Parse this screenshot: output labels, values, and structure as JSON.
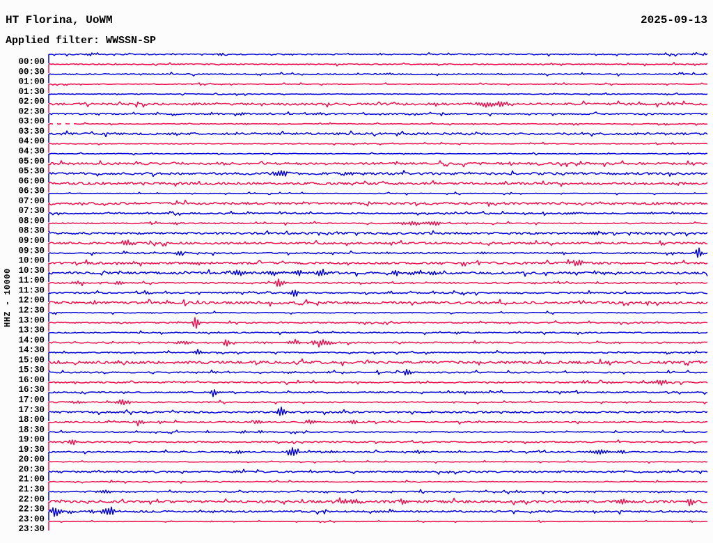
{
  "header": {
    "station_title": "HT Florina, UoWM",
    "date": "2025-09-13",
    "filter_label": "Applied filter: WWSSN-SP"
  },
  "axis": {
    "y_label": "HHZ - 10000",
    "minutes_per_line": 30,
    "first_line": "00:00",
    "last_line": "23:30"
  },
  "colors": {
    "trace_blue": "#0000d8",
    "trace_red": "#ee0f4d",
    "text": "#000000",
    "background": "#fcfcfd"
  },
  "chart_data": {
    "type": "helicorder",
    "title": "HT Florina, UoWM",
    "date": "2025-09-13",
    "filter": "WWSSN-SP",
    "channel_scale": "HHZ - 10000",
    "lines": 48,
    "minutes_per_line": 30,
    "legend_position": "none",
    "grid": false,
    "rows": [
      {
        "t": "00:00",
        "noise": 0.8,
        "events": [
          {
            "m": 1.9,
            "w": 6,
            "a": 2
          },
          {
            "m": 7.9,
            "w": 5,
            "a": 1.5
          },
          {
            "m": 29.9,
            "w": 4,
            "a": 2
          }
        ]
      },
      {
        "t": "00:30",
        "noise": 0.7,
        "events": [
          {
            "m": 30.0,
            "w": 3,
            "a": 2
          }
        ]
      },
      {
        "t": "01:00",
        "noise": 0.8,
        "events": [
          {
            "m": 15.5,
            "w": 4,
            "a": 1.5
          },
          {
            "m": 29.8,
            "w": 3,
            "a": 2
          }
        ]
      },
      {
        "t": "01:30",
        "noise": 0.5,
        "events": []
      },
      {
        "t": "02:00",
        "noise": 0.5,
        "events": [
          {
            "m": 7.8,
            "w": 3,
            "a": 1.5
          }
        ]
      },
      {
        "t": "02:30",
        "noise": 1.5,
        "events": [
          {
            "m": 20.2,
            "w": 18,
            "a": 4.5
          }
        ]
      },
      {
        "t": "03:00",
        "noise": 0.9,
        "events": [
          {
            "m": 7.4,
            "w": 6,
            "a": 2
          },
          {
            "m": 8.8,
            "w": 5,
            "a": 3.5
          },
          {
            "m": 12.3,
            "w": 5,
            "a": 2
          }
        ]
      },
      {
        "t": "03:30",
        "noise": 0.5,
        "dash": true,
        "events": [
          {
            "m": 9.0,
            "w": 3,
            "a": 1.5
          }
        ]
      },
      {
        "t": "04:00",
        "noise": 1.4,
        "events": []
      },
      {
        "t": "04:30",
        "noise": 0.55,
        "events": []
      },
      {
        "t": "05:00",
        "noise": 0.5,
        "events": []
      },
      {
        "t": "05:30",
        "noise": 1.5,
        "events": []
      },
      {
        "t": "06:00",
        "noise": 1.6,
        "events": [
          {
            "m": 10.4,
            "w": 5,
            "a": 4
          },
          {
            "m": 10.8,
            "w": 5,
            "a": 4
          },
          {
            "m": 13.8,
            "w": 12,
            "a": 2.5
          }
        ]
      },
      {
        "t": "06:30",
        "noise": 1.6,
        "events": []
      },
      {
        "t": "07:00",
        "noise": 0.5,
        "events": []
      },
      {
        "t": "07:30",
        "noise": 1.6,
        "events": []
      },
      {
        "t": "08:00",
        "noise": 0.9,
        "events": [
          {
            "m": 23.8,
            "w": 10,
            "a": 2
          }
        ]
      },
      {
        "t": "08:30",
        "noise": 0.8,
        "events": [
          {
            "m": 5.8,
            "w": 6,
            "a": 2
          },
          {
            "m": 16.6,
            "w": 14,
            "a": 3.5
          },
          {
            "m": 17.6,
            "w": 8,
            "a": 3
          }
        ]
      },
      {
        "t": "09:00",
        "noise": 1.5,
        "events": [
          {
            "m": 24.9,
            "w": 10,
            "a": 2.5
          }
        ]
      },
      {
        "t": "09:30",
        "noise": 1.4,
        "events": [
          {
            "m": 3.5,
            "w": 8,
            "a": 4
          },
          {
            "m": 9.0,
            "w": 3,
            "a": 2.5
          }
        ]
      },
      {
        "t": "10:00",
        "noise": 1.0,
        "events": [
          {
            "m": 6.0,
            "w": 4,
            "a": 5
          },
          {
            "m": 19.8,
            "w": 3,
            "a": 2
          },
          {
            "m": 23.4,
            "w": 3,
            "a": 2
          },
          {
            "m": 29.6,
            "w": 4,
            "a": 8
          }
        ]
      },
      {
        "t": "10:30",
        "noise": 1.5,
        "events": [
          {
            "m": 6.8,
            "w": 6,
            "a": 2.5
          },
          {
            "m": 24.1,
            "w": 10,
            "a": 4
          }
        ]
      },
      {
        "t": "11:00",
        "noise": 1.6,
        "events": [
          {
            "m": 8.7,
            "w": 6,
            "a": 5
          },
          {
            "m": 10.2,
            "w": 5,
            "a": 4
          },
          {
            "m": 11.4,
            "w": 6,
            "a": 5
          },
          {
            "m": 12.5,
            "w": 7,
            "a": 5
          },
          {
            "m": 15.8,
            "w": 6,
            "a": 3.5
          },
          {
            "m": 16.8,
            "w": 8,
            "a": 3.5
          },
          {
            "m": 17.6,
            "w": 6,
            "a": 3
          }
        ]
      },
      {
        "t": "11:30",
        "noise": 1.0,
        "events": [
          {
            "m": 1.3,
            "w": 7,
            "a": 2.5
          },
          {
            "m": 3.2,
            "w": 4,
            "a": 2.5
          },
          {
            "m": 10.5,
            "w": 5,
            "a": 7
          }
        ]
      },
      {
        "t": "12:00",
        "noise": 1.0,
        "events": [
          {
            "m": 4.4,
            "w": 5,
            "a": 2.5
          },
          {
            "m": 11.2,
            "w": 4,
            "a": 6
          }
        ]
      },
      {
        "t": "12:30",
        "noise": 1.7,
        "events": []
      },
      {
        "t": "13:00",
        "noise": 0.6,
        "events": [
          {
            "m": 4.7,
            "w": 3,
            "a": 1.5
          }
        ]
      },
      {
        "t": "13:30",
        "noise": 0.8,
        "events": [
          {
            "m": 5.9,
            "w": 3,
            "a": 2
          },
          {
            "m": 6.7,
            "w": 4,
            "a": 11
          }
        ]
      },
      {
        "t": "14:00",
        "noise": 0.8,
        "events": []
      },
      {
        "t": "14:30",
        "noise": 1.0,
        "events": [
          {
            "m": 6.1,
            "w": 9,
            "a": 2
          },
          {
            "m": 8.1,
            "w": 4,
            "a": 6
          },
          {
            "m": 11.2,
            "w": 8,
            "a": 4
          },
          {
            "m": 12.4,
            "w": 12,
            "a": 4.5
          }
        ]
      },
      {
        "t": "15:00",
        "noise": 0.8,
        "events": [
          {
            "m": 6.8,
            "w": 4,
            "a": 5
          }
        ]
      },
      {
        "t": "15:30",
        "noise": 1.8,
        "events": []
      },
      {
        "t": "16:00",
        "noise": 0.9,
        "events": [
          {
            "m": 7.6,
            "w": 4,
            "a": 2.5
          },
          {
            "m": 11.1,
            "w": 5,
            "a": 2.5
          },
          {
            "m": 16.3,
            "w": 4,
            "a": 7
          }
        ]
      },
      {
        "t": "16:30",
        "noise": 1.0,
        "events": [
          {
            "m": 27.9,
            "w": 12,
            "a": 3.5
          }
        ]
      },
      {
        "t": "17:00",
        "noise": 0.9,
        "events": [
          {
            "m": 7.5,
            "w": 4,
            "a": 6
          }
        ]
      },
      {
        "t": "17:30",
        "noise": 0.8,
        "events": [
          {
            "m": 1.3,
            "w": 8,
            "a": 2
          },
          {
            "m": 3.4,
            "w": 7,
            "a": 5
          }
        ]
      },
      {
        "t": "18:00",
        "noise": 1.2,
        "events": [
          {
            "m": 10.6,
            "w": 4,
            "a": 9
          }
        ]
      },
      {
        "t": "18:30",
        "noise": 0.9,
        "events": [
          {
            "m": 4.1,
            "w": 5,
            "a": 4
          },
          {
            "m": 5.1,
            "w": 4,
            "a": 2.5
          },
          {
            "m": 9.5,
            "w": 5,
            "a": 3.5
          },
          {
            "m": 11.9,
            "w": 6,
            "a": 4.5
          },
          {
            "m": 13.9,
            "w": 4,
            "a": 3
          }
        ]
      },
      {
        "t": "19:00",
        "noise": 0.7,
        "events": [
          {
            "m": 8.9,
            "w": 4,
            "a": 2
          },
          {
            "m": 9.7,
            "w": 4,
            "a": 2.5
          }
        ]
      },
      {
        "t": "19:30",
        "noise": 0.9,
        "events": [
          {
            "m": 1.1,
            "w": 5,
            "a": 5
          }
        ]
      },
      {
        "t": "20:00",
        "noise": 0.9,
        "events": [
          {
            "m": 8.5,
            "w": 10,
            "a": 2.5
          },
          {
            "m": 11.1,
            "w": 6,
            "a": 7
          },
          {
            "m": 12.7,
            "w": 8,
            "a": 2
          },
          {
            "m": 16.8,
            "w": 10,
            "a": 2
          },
          {
            "m": 25.1,
            "w": 9,
            "a": 4
          },
          {
            "m": 26.1,
            "w": 4,
            "a": 3
          }
        ]
      },
      {
        "t": "20:30",
        "noise": 0.45,
        "events": []
      },
      {
        "t": "21:00",
        "noise": 1.1,
        "events": [
          {
            "m": 2.0,
            "w": 6,
            "a": 1.5
          },
          {
            "m": 8.5,
            "w": 6,
            "a": 1.5
          },
          {
            "m": 14.2,
            "w": 6,
            "a": 1.5
          }
        ]
      },
      {
        "t": "21:30",
        "noise": 0.6,
        "events": []
      },
      {
        "t": "22:00",
        "noise": 1.0,
        "events": [
          {
            "m": 2.6,
            "w": 8,
            "a": 2.5
          },
          {
            "m": 12.7,
            "w": 4,
            "a": 1.5
          },
          {
            "m": 15.5,
            "w": 4,
            "a": 1.5
          }
        ]
      },
      {
        "t": "22:30",
        "noise": 1.7,
        "events": [
          {
            "m": 13.5,
            "w": 12,
            "a": 3
          },
          {
            "m": 14.0,
            "w": 6,
            "a": 3
          },
          {
            "m": 16.1,
            "w": 4,
            "a": 5
          },
          {
            "m": 26.1,
            "w": 8,
            "a": 4
          },
          {
            "m": 29.2,
            "w": 5,
            "a": 5
          }
        ]
      },
      {
        "t": "23:00",
        "noise": 1.2,
        "events": [
          {
            "m": 0.3,
            "w": 7,
            "a": 8
          },
          {
            "m": 1.0,
            "w": 4,
            "a": 3
          },
          {
            "m": 1.9,
            "w": 4,
            "a": 3
          },
          {
            "m": 2.8,
            "w": 8,
            "a": 7
          },
          {
            "m": 7.6,
            "w": 4,
            "a": 2
          }
        ]
      },
      {
        "t": "23:30",
        "noise": 0.35,
        "events": [
          {
            "m": 7.4,
            "w": 2,
            "a": 1.5
          },
          {
            "m": 20.3,
            "w": 2,
            "a": 1.5
          },
          {
            "m": 22.5,
            "w": 2,
            "a": 1.5
          },
          {
            "m": 29.3,
            "w": 2,
            "a": 2
          }
        ]
      }
    ]
  }
}
